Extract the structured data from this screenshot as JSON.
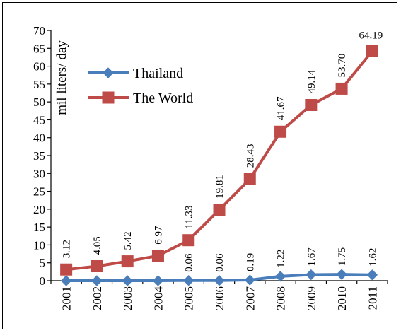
{
  "chart_data": {
    "type": "line",
    "title": "",
    "xlabel": "",
    "ylabel": "mil liters/ day",
    "ylim": [
      0,
      70
    ],
    "ytick_step": 5,
    "grid": false,
    "legend_position": "top-left",
    "categories": [
      "2001",
      "2002",
      "2003",
      "2004",
      "2005",
      "2006",
      "2007",
      "2008",
      "2009",
      "2010",
      "2011"
    ],
    "series": [
      {
        "name": "Thailand",
        "marker": "diamond",
        "color": "#4a7ebb",
        "marker_color": "#4a7ebb",
        "values": [
          0,
          0,
          0,
          0,
          0.06,
          0.06,
          0.19,
          1.22,
          1.67,
          1.75,
          1.62
        ],
        "labels": [
          "",
          "",
          "",
          "",
          "0.06",
          "0.06",
          "0.19",
          "1.22",
          "1.67",
          "1.75",
          "1.62"
        ]
      },
      {
        "name": "The World",
        "marker": "square",
        "color": "#be4b48",
        "marker_color": "#be4b48",
        "values": [
          3.12,
          4.05,
          5.42,
          6.97,
          11.33,
          19.81,
          28.43,
          41.67,
          49.14,
          53.7,
          64.19
        ],
        "labels": [
          "3.12",
          "4.05",
          "5.42",
          "6.97",
          "11.33",
          "19.81",
          "28.43",
          "41.67",
          "49.14",
          "53.70",
          "64.19"
        ]
      }
    ]
  }
}
